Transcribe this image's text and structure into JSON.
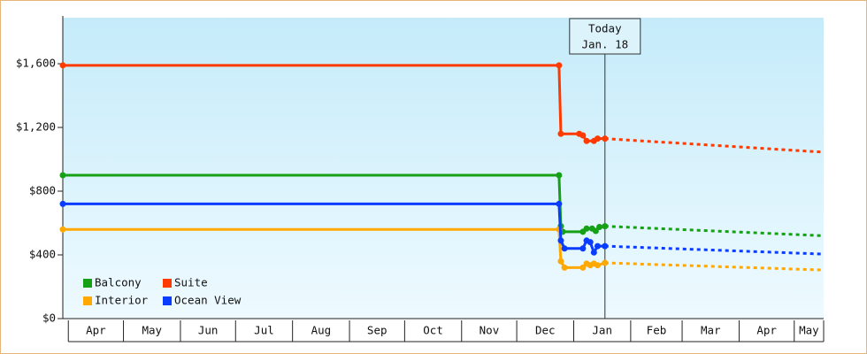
{
  "chart_data": {
    "type": "line",
    "xlim": [
      -3,
      411
    ],
    "ylim": [
      0,
      1889
    ],
    "yticks": [
      {
        "value": 0,
        "label": "$0"
      },
      {
        "value": 400,
        "label": "$400"
      },
      {
        "value": 800,
        "label": "$800"
      },
      {
        "value": 1200,
        "label": "$1,200"
      },
      {
        "value": 1600,
        "label": "$1,600"
      }
    ],
    "xticks": [
      {
        "value": 0,
        "label": "Apr"
      },
      {
        "value": 30,
        "label": "May"
      },
      {
        "value": 61,
        "label": "Jun"
      },
      {
        "value": 91,
        "label": "Jul"
      },
      {
        "value": 122,
        "label": "Aug"
      },
      {
        "value": 153,
        "label": "Sep"
      },
      {
        "value": 183,
        "label": "Oct"
      },
      {
        "value": 214,
        "label": "Nov"
      },
      {
        "value": 244,
        "label": "Dec"
      },
      {
        "value": 275,
        "label": "Jan"
      },
      {
        "value": 306,
        "label": "Feb"
      },
      {
        "value": 334,
        "label": "Mar"
      },
      {
        "value": 365,
        "label": "Apr"
      },
      {
        "value": 395,
        "label": "May"
      }
    ],
    "annotation": {
      "x": 292,
      "text": "Today",
      "date": "Jan. 18"
    },
    "legend": "lower left",
    "series": [
      {
        "name": "Balcony",
        "color": "#16a016",
        "x": [
          -3,
          267,
          268,
          269,
          280,
          282,
          285,
          287,
          289,
          292,
          411
        ],
        "values": [
          900,
          900,
          580,
          545,
          545,
          565,
          565,
          550,
          575,
          580,
          520
        ]
      },
      {
        "name": "Suite",
        "color": "#ff3a00",
        "x": [
          -3,
          267,
          268,
          278,
          280,
          282,
          286,
          288,
          292,
          411
        ],
        "values": [
          1590,
          1590,
          1160,
          1160,
          1150,
          1115,
          1115,
          1130,
          1130,
          1045
        ]
      },
      {
        "name": "Interior",
        "color": "#ffa800",
        "x": [
          -3,
          267,
          268,
          270,
          280,
          282,
          284,
          286,
          288,
          292,
          411
        ],
        "values": [
          560,
          560,
          360,
          320,
          320,
          345,
          335,
          345,
          335,
          350,
          305
        ]
      },
      {
        "name": "Ocean View",
        "color": "#0a3cff",
        "x": [
          -3,
          267,
          268,
          270,
          280,
          282,
          284,
          286,
          288,
          292,
          411
        ],
        "values": [
          720,
          720,
          490,
          440,
          440,
          490,
          480,
          415,
          455,
          455,
          405
        ]
      }
    ]
  }
}
